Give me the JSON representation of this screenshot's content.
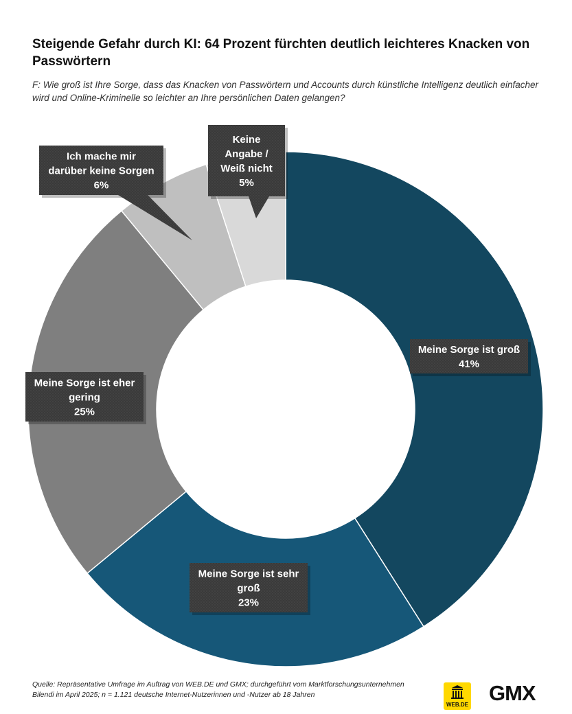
{
  "title": "Steigende Gefahr durch KI: 64 Prozent fürchten deutlich leichteres Knacken von Passwörtern",
  "question": "F: Wie groß ist Ihre Sorge, dass das Knacken von Passwörtern und Accounts durch künstliche Intelligenz deutlich einfacher wird und Online-Kriminelle so leichter an Ihre persönlichen Daten gelangen?",
  "source": "Quelle: Repräsentative Umfrage im Auftrag von WEB.DE und GMX; durchgeführt vom Marktforschungsunternehmen Bilendi im April 2025; n = 1.121 deutsche Internet-Nutzerinnen und -Nutzer ab 18 Jahren",
  "logos": {
    "webde": "WEB.DE",
    "gmx": "GMX"
  },
  "chart_data": {
    "type": "pie",
    "subtype": "donut",
    "unit": "%",
    "slices": [
      {
        "label": "Meine Sorge ist groß",
        "lines": [
          "Meine Sorge ist groß"
        ],
        "value": 41,
        "value_label": "41%",
        "color": "#13475f"
      },
      {
        "label": "Meine Sorge ist sehr groß",
        "lines": [
          "Meine Sorge ist sehr",
          "groß"
        ],
        "value": 23,
        "value_label": "23%",
        "color": "#165778"
      },
      {
        "label": "Meine Sorge ist eher gering",
        "lines": [
          "Meine Sorge ist eher",
          "gering"
        ],
        "value": 25,
        "value_label": "25%",
        "color": "#7f7f7f"
      },
      {
        "label": "Ich mache mir darüber keine Sorgen",
        "lines": [
          "Ich mache mir",
          "darüber keine Sorgen"
        ],
        "value": 6,
        "value_label": "6%",
        "color": "#bfbfbf"
      },
      {
        "label": "Keine Angabe / Weiß nicht",
        "lines": [
          "Keine",
          "Angabe /",
          "Weiß nicht"
        ],
        "value": 5,
        "value_label": "5%",
        "color": "#d9d9d9"
      }
    ]
  }
}
